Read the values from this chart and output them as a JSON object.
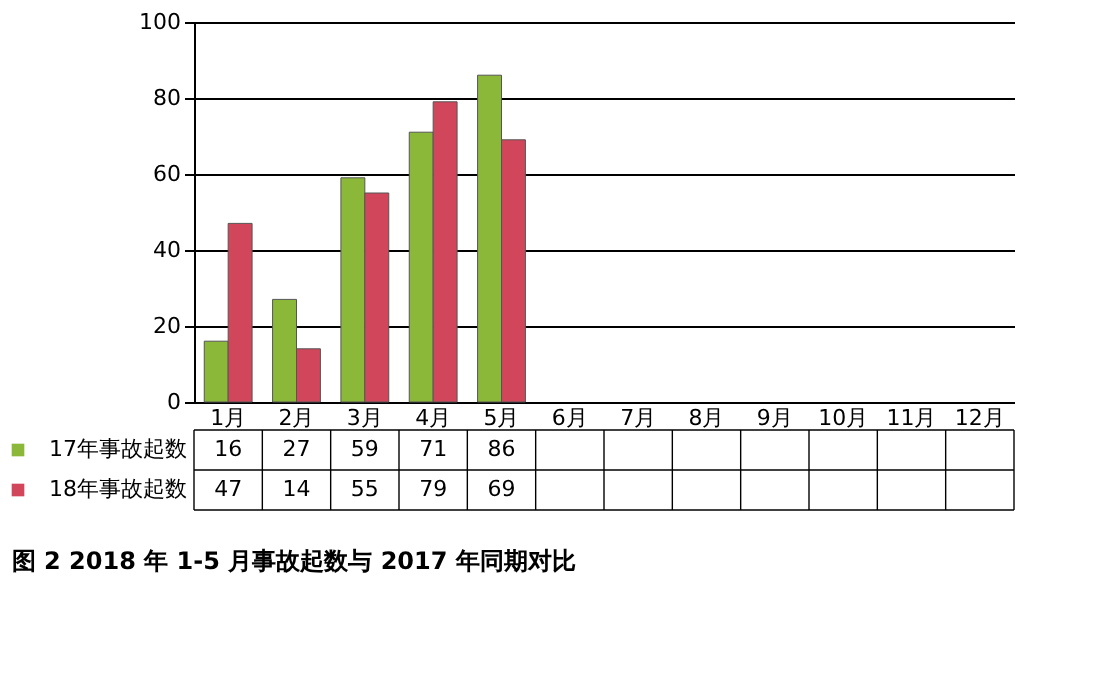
{
  "chart_data": {
    "type": "bar",
    "categories": [
      "1月",
      "2月",
      "3月",
      "4月",
      "5月",
      "6月",
      "7月",
      "8月",
      "9月",
      "10月",
      "11月",
      "12月"
    ],
    "series": [
      {
        "name": "17年事故起数",
        "color": "#8cb83a",
        "values": [
          16,
          27,
          59,
          71,
          86,
          null,
          null,
          null,
          null,
          null,
          null,
          null
        ]
      },
      {
        "name": "18年事故起数",
        "color": "#d2465c",
        "values": [
          47,
          14,
          55,
          79,
          69,
          null,
          null,
          null,
          null,
          null,
          null,
          null
        ]
      }
    ],
    "ylim": [
      0,
      100
    ],
    "yticks": [
      0,
      20,
      40,
      60,
      80,
      100
    ],
    "grid": "y",
    "data_labels": true,
    "legend": "bottom",
    "annotations": [
      "图 2  2018 年 1-5 月事故起数与 2017 年同期对比"
    ]
  }
}
